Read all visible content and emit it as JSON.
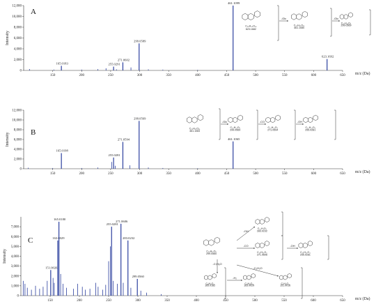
{
  "chart_data": [
    {
      "type": "bar",
      "panel": "A",
      "xlabel": "m/z (Da)",
      "ylabel": "Intensity",
      "xlim": [
        100,
        650
      ],
      "ylim": [
        0,
        12000
      ],
      "xticks": [
        150,
        200,
        250,
        300,
        350,
        400,
        450,
        500,
        550,
        600,
        650
      ],
      "yticks": [
        0,
        2000,
        4000,
        6000,
        8000,
        10000,
        12000
      ],
      "ytick_labels": [
        "0",
        "2,000",
        "4,000",
        "6,000",
        "8,000",
        "10,000",
        "12,000"
      ],
      "peaks": [
        {
          "x": 110,
          "y": 250
        },
        {
          "x": 152,
          "y": 150
        },
        {
          "x": 165.0183,
          "y": 850,
          "label": "165.0183"
        },
        {
          "x": 200,
          "y": 150
        },
        {
          "x": 228,
          "y": 250
        },
        {
          "x": 242,
          "y": 400
        },
        {
          "x": 255.0291,
          "y": 700,
          "label": "255.0291"
        },
        {
          "x": 260,
          "y": 200
        },
        {
          "x": 271.0602,
          "y": 1500,
          "label": "271.0602"
        },
        {
          "x": 285,
          "y": 550
        },
        {
          "x": 299.0589,
          "y": 5000,
          "label": "299.0589"
        },
        {
          "x": 315,
          "y": 200
        },
        {
          "x": 340,
          "y": 150
        },
        {
          "x": 400,
          "y": 100
        },
        {
          "x": 461.1099,
          "y": 12000,
          "label": "461.1099"
        },
        {
          "x": 623.1692,
          "y": 2100,
          "label": "623.1692"
        }
      ],
      "scheme": [
        {
          "formula": "C₂₈H₃₂O₁₆",
          "mass": "623.1682"
        },
        {
          "arrow": "-Glc"
        },
        {
          "formula": "C₂₂H₂₁O₁₁",
          "mass": "461.1080"
        },
        {
          "arrow": "-Glc"
        },
        {
          "formula": "C₁₆H₁₁O₆",
          "mass": "299.0569"
        }
      ]
    },
    {
      "type": "bar",
      "panel": "B",
      "xlabel": "m/z (Da)",
      "ylabel": "Intensity",
      "xlim": [
        100,
        650
      ],
      "ylim": [
        0,
        12000
      ],
      "xticks": [
        150,
        200,
        250,
        300,
        350,
        400,
        450,
        500,
        550,
        600,
        650
      ],
      "yticks": [
        0,
        2000,
        4000,
        6000,
        8000,
        10000,
        12000
      ],
      "ytick_labels": [
        "0",
        "2,000",
        "4,000",
        "6,000",
        "8,000",
        "10,000",
        "12,000"
      ],
      "peaks": [
        {
          "x": 108,
          "y": 200
        },
        {
          "x": 150,
          "y": 150
        },
        {
          "x": 165.0198,
          "y": 3200,
          "label": "165.0198"
        },
        {
          "x": 200,
          "y": 150
        },
        {
          "x": 228,
          "y": 250
        },
        {
          "x": 252,
          "y": 1400
        },
        {
          "x": 255.0281,
          "y": 2300,
          "label": "255.0281"
        },
        {
          "x": 258,
          "y": 600
        },
        {
          "x": 271.0594,
          "y": 5500,
          "label": "271.0594"
        },
        {
          "x": 283,
          "y": 700
        },
        {
          "x": 299.0569,
          "y": 9800,
          "label": "299.0569"
        },
        {
          "x": 315,
          "y": 250
        },
        {
          "x": 340,
          "y": 150
        },
        {
          "x": 400,
          "y": 100
        },
        {
          "x": 461.1065,
          "y": 5600,
          "label": "461.1065"
        }
      ],
      "scheme": [
        {
          "formula": "C₂₂H₂₁O₁₁",
          "mass": "461.1083"
        },
        {
          "arrow": "-Glc"
        },
        {
          "formula": "C₁₆H₁₁O₆",
          "mass": "299.0569"
        },
        {
          "arrow": "-CO"
        },
        {
          "formula": "C₁₅H₁₁O₅",
          "mass": "271.0594"
        },
        {
          "arrow": "-OH"
        },
        {
          "formula": "C₁₅H₁₁O₄",
          "mass": "255.0281"
        }
      ]
    },
    {
      "type": "bar",
      "panel": "C",
      "xlabel": "m/z (Da)",
      "ylabel": "Intensity",
      "xlim": [
        100,
        650
      ],
      "ylim": [
        0,
        8000
      ],
      "xticks": [
        150,
        200,
        250,
        300,
        350,
        400,
        450,
        500,
        550,
        600,
        650
      ],
      "yticks": [
        0,
        1000,
        2000,
        3000,
        4000,
        5000,
        6000,
        7000
      ],
      "ytick_labels": [
        "0",
        "1,000",
        "2,000",
        "3,000",
        "4,000",
        "5,000",
        "6,000",
        "7,000"
      ],
      "peaks": [
        {
          "x": 104,
          "y": 1500
        },
        {
          "x": 107,
          "y": 1200
        },
        {
          "x": 111,
          "y": 800
        },
        {
          "x": 118,
          "y": 600
        },
        {
          "x": 125,
          "y": 1000
        },
        {
          "x": 132,
          "y": 700
        },
        {
          "x": 138,
          "y": 900
        },
        {
          "x": 145,
          "y": 1500
        },
        {
          "x": 151.0026,
          "y": 2600,
          "label": "151.0026"
        },
        {
          "x": 155,
          "y": 1800
        },
        {
          "x": 157,
          "y": 1300
        },
        {
          "x": 163.0029,
          "y": 5600,
          "label": "163.0029"
        },
        {
          "x": 165.018,
          "y": 7500,
          "label": "165.0180"
        },
        {
          "x": 168,
          "y": 2200
        },
        {
          "x": 172,
          "y": 1200
        },
        {
          "x": 178,
          "y": 800
        },
        {
          "x": 190,
          "y": 700
        },
        {
          "x": 197,
          "y": 1200
        },
        {
          "x": 205,
          "y": 900
        },
        {
          "x": 210,
          "y": 600
        },
        {
          "x": 218,
          "y": 700
        },
        {
          "x": 228,
          "y": 1300
        },
        {
          "x": 232,
          "y": 900
        },
        {
          "x": 240,
          "y": 600
        },
        {
          "x": 245,
          "y": 1100
        },
        {
          "x": 250,
          "y": 3500
        },
        {
          "x": 253,
          "y": 5000
        },
        {
          "x": 255.0281,
          "y": 7000,
          "label": "255.0281"
        },
        {
          "x": 258,
          "y": 1500
        },
        {
          "x": 265,
          "y": 1200
        },
        {
          "x": 271.0606,
          "y": 7300,
          "label": "271.0606"
        },
        {
          "x": 275,
          "y": 1300
        },
        {
          "x": 283.0232,
          "y": 5600,
          "label": "283.0232"
        },
        {
          "x": 288,
          "y": 800
        },
        {
          "x": 299.056,
          "y": 1700,
          "label": "299.0560"
        },
        {
          "x": 305,
          "y": 500
        },
        {
          "x": 315,
          "y": 300
        },
        {
          "x": 340,
          "y": 150
        }
      ],
      "scheme": [
        {
          "formula": "C₁₆H₁₁O₆",
          "mass": "299.0560"
        },
        {
          "arrow": "-OH"
        },
        {
          "formula": "C₁₅H₇O₅",
          "mass": "283.0232"
        },
        {
          "arrow": "-CO"
        },
        {
          "formula": "C₁₅H₁₁O₅",
          "mass": "271.0606"
        },
        {
          "arrow": "-OH"
        },
        {
          "formula": "C₁₅H₁₁O₄",
          "mass": "255.0281"
        },
        {
          "arrow": "-C₇H₅O"
        },
        {
          "formula": "C₈H₅O₃",
          "mass": "165.0182"
        },
        {
          "arrow": "-H₂"
        },
        {
          "formula": "C₈H₃O₃",
          "mass": "163.0029"
        },
        {
          "arrow": "-C₂H₂O"
        },
        {
          "formula": "C₇H₅O₃",
          "mass": "151.0016"
        }
      ]
    }
  ]
}
